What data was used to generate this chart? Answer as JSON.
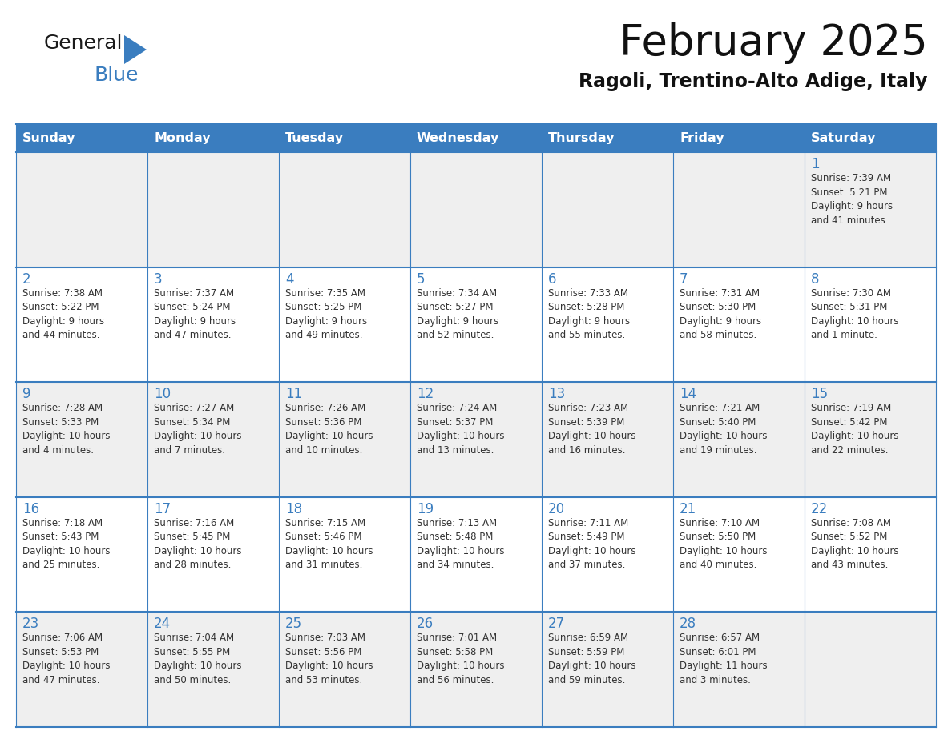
{
  "title": "February 2025",
  "subtitle": "Ragoli, Trentino-Alto Adige, Italy",
  "days_of_week": [
    "Sunday",
    "Monday",
    "Tuesday",
    "Wednesday",
    "Thursday",
    "Friday",
    "Saturday"
  ],
  "header_bg": "#3a7dbf",
  "header_text": "#ffffff",
  "row_bg_alt": "#efefef",
  "row_bg_norm": "#ffffff",
  "cell_border_color": "#3a7dbf",
  "day_number_color": "#3a7dbf",
  "text_color": "#333333",
  "logo_general_color": "#1a1a1a",
  "logo_blue_color": "#3a7dbf",
  "logo_triangle_color": "#3a7dbf",
  "calendar_data": [
    [
      {
        "day": null,
        "info": null
      },
      {
        "day": null,
        "info": null
      },
      {
        "day": null,
        "info": null
      },
      {
        "day": null,
        "info": null
      },
      {
        "day": null,
        "info": null
      },
      {
        "day": null,
        "info": null
      },
      {
        "day": 1,
        "info": "Sunrise: 7:39 AM\nSunset: 5:21 PM\nDaylight: 9 hours\nand 41 minutes."
      }
    ],
    [
      {
        "day": 2,
        "info": "Sunrise: 7:38 AM\nSunset: 5:22 PM\nDaylight: 9 hours\nand 44 minutes."
      },
      {
        "day": 3,
        "info": "Sunrise: 7:37 AM\nSunset: 5:24 PM\nDaylight: 9 hours\nand 47 minutes."
      },
      {
        "day": 4,
        "info": "Sunrise: 7:35 AM\nSunset: 5:25 PM\nDaylight: 9 hours\nand 49 minutes."
      },
      {
        "day": 5,
        "info": "Sunrise: 7:34 AM\nSunset: 5:27 PM\nDaylight: 9 hours\nand 52 minutes."
      },
      {
        "day": 6,
        "info": "Sunrise: 7:33 AM\nSunset: 5:28 PM\nDaylight: 9 hours\nand 55 minutes."
      },
      {
        "day": 7,
        "info": "Sunrise: 7:31 AM\nSunset: 5:30 PM\nDaylight: 9 hours\nand 58 minutes."
      },
      {
        "day": 8,
        "info": "Sunrise: 7:30 AM\nSunset: 5:31 PM\nDaylight: 10 hours\nand 1 minute."
      }
    ],
    [
      {
        "day": 9,
        "info": "Sunrise: 7:28 AM\nSunset: 5:33 PM\nDaylight: 10 hours\nand 4 minutes."
      },
      {
        "day": 10,
        "info": "Sunrise: 7:27 AM\nSunset: 5:34 PM\nDaylight: 10 hours\nand 7 minutes."
      },
      {
        "day": 11,
        "info": "Sunrise: 7:26 AM\nSunset: 5:36 PM\nDaylight: 10 hours\nand 10 minutes."
      },
      {
        "day": 12,
        "info": "Sunrise: 7:24 AM\nSunset: 5:37 PM\nDaylight: 10 hours\nand 13 minutes."
      },
      {
        "day": 13,
        "info": "Sunrise: 7:23 AM\nSunset: 5:39 PM\nDaylight: 10 hours\nand 16 minutes."
      },
      {
        "day": 14,
        "info": "Sunrise: 7:21 AM\nSunset: 5:40 PM\nDaylight: 10 hours\nand 19 minutes."
      },
      {
        "day": 15,
        "info": "Sunrise: 7:19 AM\nSunset: 5:42 PM\nDaylight: 10 hours\nand 22 minutes."
      }
    ],
    [
      {
        "day": 16,
        "info": "Sunrise: 7:18 AM\nSunset: 5:43 PM\nDaylight: 10 hours\nand 25 minutes."
      },
      {
        "day": 17,
        "info": "Sunrise: 7:16 AM\nSunset: 5:45 PM\nDaylight: 10 hours\nand 28 minutes."
      },
      {
        "day": 18,
        "info": "Sunrise: 7:15 AM\nSunset: 5:46 PM\nDaylight: 10 hours\nand 31 minutes."
      },
      {
        "day": 19,
        "info": "Sunrise: 7:13 AM\nSunset: 5:48 PM\nDaylight: 10 hours\nand 34 minutes."
      },
      {
        "day": 20,
        "info": "Sunrise: 7:11 AM\nSunset: 5:49 PM\nDaylight: 10 hours\nand 37 minutes."
      },
      {
        "day": 21,
        "info": "Sunrise: 7:10 AM\nSunset: 5:50 PM\nDaylight: 10 hours\nand 40 minutes."
      },
      {
        "day": 22,
        "info": "Sunrise: 7:08 AM\nSunset: 5:52 PM\nDaylight: 10 hours\nand 43 minutes."
      }
    ],
    [
      {
        "day": 23,
        "info": "Sunrise: 7:06 AM\nSunset: 5:53 PM\nDaylight: 10 hours\nand 47 minutes."
      },
      {
        "day": 24,
        "info": "Sunrise: 7:04 AM\nSunset: 5:55 PM\nDaylight: 10 hours\nand 50 minutes."
      },
      {
        "day": 25,
        "info": "Sunrise: 7:03 AM\nSunset: 5:56 PM\nDaylight: 10 hours\nand 53 minutes."
      },
      {
        "day": 26,
        "info": "Sunrise: 7:01 AM\nSunset: 5:58 PM\nDaylight: 10 hours\nand 56 minutes."
      },
      {
        "day": 27,
        "info": "Sunrise: 6:59 AM\nSunset: 5:59 PM\nDaylight: 10 hours\nand 59 minutes."
      },
      {
        "day": 28,
        "info": "Sunrise: 6:57 AM\nSunset: 6:01 PM\nDaylight: 11 hours\nand 3 minutes."
      },
      {
        "day": null,
        "info": null
      }
    ]
  ]
}
